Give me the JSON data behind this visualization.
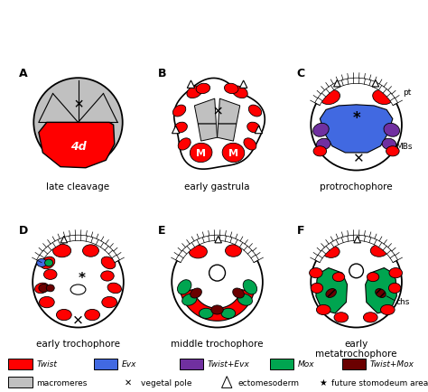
{
  "colors": {
    "twist": "#FF0000",
    "evx": "#4169E1",
    "twist_evx": "#7030A0",
    "mox": "#00A550",
    "twist_mox": "#6B0000",
    "macromere_gray": "#C0C0C0",
    "outline": "#000000",
    "white": "#FFFFFF"
  },
  "legend": {
    "items": [
      "Twist",
      "Evx",
      "Twist+Evx",
      "Mox",
      "Twist+Mox"
    ],
    "colors": [
      "#FF0000",
      "#4169E1",
      "#7030A0",
      "#00A550",
      "#6B0000"
    ],
    "macromere_color": "#C0C0C0"
  }
}
